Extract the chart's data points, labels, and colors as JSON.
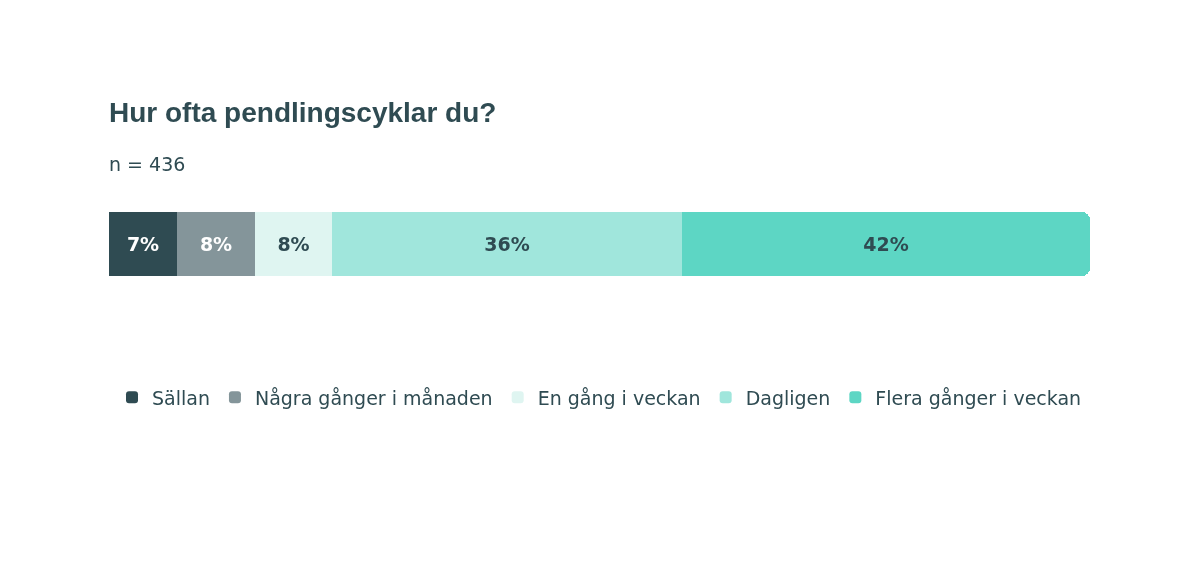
{
  "chart_data": {
    "type": "bar",
    "orientation": "horizontal",
    "stacked": true,
    "title": "Hur ofta pendlingscyklar du?",
    "subtitle": "n = 436",
    "categories": [
      null
    ],
    "xlim": [
      0,
      101
    ],
    "legend": "bottom",
    "series": [
      {
        "name": "Sällan",
        "color": "#2f4b52",
        "values": [
          7
        ],
        "value_labels": [
          "7%"
        ]
      },
      {
        "name": "Några gånger i månaden",
        "color": "#84959a",
        "values": [
          8
        ],
        "value_labels": [
          "8%"
        ]
      },
      {
        "name": "En gång i veckan",
        "color": "#dff5f1",
        "values": [
          8
        ],
        "value_labels": [
          "8%"
        ]
      },
      {
        "name": "Dagligen",
        "color": "#a0e6dc",
        "values": [
          36
        ],
        "value_labels": [
          "36%"
        ]
      },
      {
        "name": "Flera gånger i veckan",
        "color": "#5dd6c4",
        "values": [
          42
        ],
        "value_labels": [
          "42%"
        ]
      }
    ]
  }
}
